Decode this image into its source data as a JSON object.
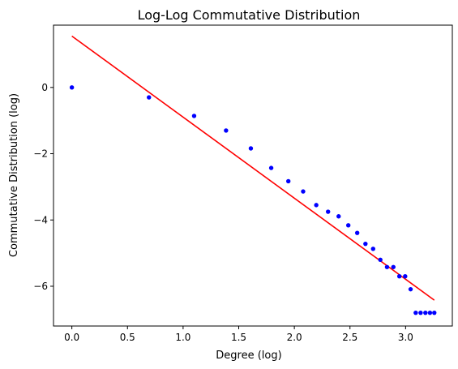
{
  "chart_data": {
    "type": "scatter",
    "title": "Log-Log Commutative Distribution",
    "xlabel": "Degree (log)",
    "ylabel": "Commutative Distribution (log)",
    "xlim": [
      -0.165,
      3.42
    ],
    "ylim": [
      -7.2,
      1.88
    ],
    "x_ticks": [
      "0.0",
      "0.5",
      "1.0",
      "1.5",
      "2.0",
      "2.5",
      "3.0"
    ],
    "x_tick_values": [
      0,
      0.5,
      1.0,
      1.5,
      2.0,
      2.5,
      3.0
    ],
    "y_ticks": [
      "0",
      "−2",
      "−4",
      "−6"
    ],
    "y_tick_values": [
      0,
      -2,
      -4,
      -6
    ],
    "grid": false,
    "series": [
      {
        "kind": "scatter",
        "color": "#0000ff",
        "x": [
          0.0,
          0.693,
          1.099,
          1.386,
          1.609,
          1.792,
          1.946,
          2.079,
          2.197,
          2.303,
          2.398,
          2.485,
          2.565,
          2.639,
          2.708,
          2.773,
          2.833,
          2.89,
          2.944,
          2.996,
          3.045,
          3.091,
          3.135,
          3.178,
          3.219,
          3.258
        ],
        "y": [
          0.0,
          -0.3,
          -0.86,
          -1.3,
          -1.84,
          -2.43,
          -2.83,
          -3.14,
          -3.55,
          -3.75,
          -3.89,
          -4.16,
          -4.39,
          -4.72,
          -4.87,
          -5.2,
          -5.42,
          -5.42,
          -5.7,
          -5.7,
          -6.09,
          -6.8,
          -6.8,
          -6.8,
          -6.8,
          -6.8
        ]
      },
      {
        "kind": "line",
        "color": "#ff0000",
        "x": [
          0.0,
          3.258
        ],
        "y": [
          1.55,
          -6.42
        ]
      }
    ]
  }
}
